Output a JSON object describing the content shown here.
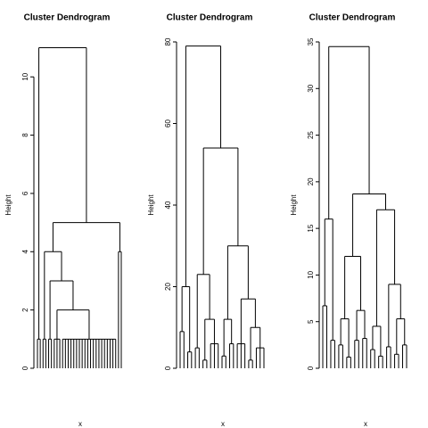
{
  "chart_data": [
    {
      "type": "dendrogram",
      "title": "Cluster Dendrogram",
      "xlabel": "x",
      "ylabel": "Height",
      "ylim": [
        0,
        11.2
      ],
      "yticks": [
        0,
        2,
        4,
        6,
        8,
        10
      ],
      "color": "#000000",
      "tree": {
        "height": 11,
        "children": [
          {
            "height": 1,
            "children": [
              0,
              0
            ]
          },
          {
            "height": 5,
            "children": [
              {
                "height": 4,
                "children": [
                  {
                    "height": 1,
                    "children": [
                      0,
                      0
                    ]
                  },
                  {
                    "height": 3,
                    "children": [
                      {
                        "height": 1,
                        "children": [
                          0,
                          0
                        ]
                      },
                      {
                        "height": 2,
                        "children": [
                          {
                            "height": 1,
                            "children": [
                              0,
                              0,
                              0
                            ]
                          },
                          {
                            "height": 1,
                            "children": [
                              0,
                              0,
                              0,
                              0,
                              0,
                              0,
                              0,
                              0,
                              0,
                              0,
                              0,
                              0,
                              0,
                              0,
                              0,
                              0,
                              0,
                              0,
                              0,
                              0
                            ]
                          }
                        ]
                      }
                    ]
                  }
                ]
              },
              {
                "height": 4,
                "children": [
                  0,
                  0
                ]
              }
            ]
          }
        ]
      }
    },
    {
      "type": "dendrogram",
      "title": "Cluster Dendrogram",
      "xlabel": "x",
      "ylabel": "Height",
      "ylim": [
        0,
        80
      ],
      "yticks": [
        0,
        20,
        40,
        60,
        80
      ],
      "color": "#000000",
      "tree": {
        "height": 79,
        "children": [
          {
            "height": 20,
            "children": [
              {
                "height": 9,
                "children": [
                  0,
                  0
                ]
              },
              {
                "height": 4,
                "children": [
                  0,
                  0
                ]
              }
            ]
          },
          {
            "height": 54,
            "children": [
              {
                "height": 23,
                "children": [
                  {
                    "height": 5,
                    "children": [
                      0,
                      0
                    ]
                  },
                  {
                    "height": 12,
                    "children": [
                      {
                        "height": 2,
                        "children": [
                          0,
                          0
                        ]
                      },
                      {
                        "height": 6,
                        "children": [
                          0,
                          0,
                          0
                        ]
                      }
                    ]
                  }
                ]
              },
              {
                "height": 30,
                "children": [
                  {
                    "height": 12,
                    "children": [
                      {
                        "height": 3,
                        "children": [
                          0,
                          0
                        ]
                      },
                      {
                        "height": 6,
                        "children": [
                          0,
                          0
                        ]
                      }
                    ]
                  },
                  {
                    "height": 17,
                    "children": [
                      {
                        "height": 6,
                        "children": [
                          0,
                          0,
                          0
                        ]
                      },
                      {
                        "height": 10,
                        "children": [
                          {
                            "height": 2,
                            "children": [
                              0,
                              0
                            ]
                          },
                          {
                            "height": 5,
                            "children": [
                              0,
                              0,
                              0
                            ]
                          }
                        ]
                      }
                    ]
                  }
                ]
              }
            ]
          }
        ]
      }
    },
    {
      "type": "dendrogram",
      "title": "Cluster Dendrogram",
      "xlabel": "x",
      "ylabel": "Height",
      "ylim": [
        0,
        35
      ],
      "yticks": [
        0,
        5,
        10,
        15,
        20,
        25,
        30,
        35
      ],
      "color": "#000000",
      "tree": {
        "height": 34.5,
        "children": [
          {
            "height": 16,
            "children": [
              {
                "height": 6.7,
                "children": [
                  0,
                  0
                ]
              },
              {
                "height": 3,
                "children": [
                  0,
                  0
                ]
              }
            ]
          },
          {
            "height": 18.7,
            "children": [
              {
                "height": 12,
                "children": [
                  {
                    "height": 5.3,
                    "children": [
                      {
                        "height": 2.5,
                        "children": [
                          0,
                          0
                        ]
                      },
                      {
                        "height": 1.2,
                        "children": [
                          0,
                          0
                        ]
                      }
                    ]
                  },
                  {
                    "height": 6.2,
                    "children": [
                      {
                        "height": 3,
                        "children": [
                          0,
                          0
                        ]
                      },
                      {
                        "height": 3.2,
                        "children": [
                          0,
                          0
                        ]
                      }
                    ]
                  }
                ]
              },
              {
                "height": 17,
                "children": [
                  {
                    "height": 4.5,
                    "children": [
                      {
                        "height": 2,
                        "children": [
                          0,
                          0
                        ]
                      },
                      {
                        "height": 1.3,
                        "children": [
                          0,
                          0
                        ]
                      }
                    ]
                  },
                  {
                    "height": 9,
                    "children": [
                      {
                        "height": 2.3,
                        "children": [
                          0,
                          0
                        ]
                      },
                      {
                        "height": 5.3,
                        "children": [
                          {
                            "height": 1.5,
                            "children": [
                              0,
                              0
                            ]
                          },
                          {
                            "height": 2.5,
                            "children": [
                              0,
                              0
                            ]
                          }
                        ]
                      }
                    ]
                  }
                ]
              }
            ]
          }
        ]
      }
    }
  ]
}
